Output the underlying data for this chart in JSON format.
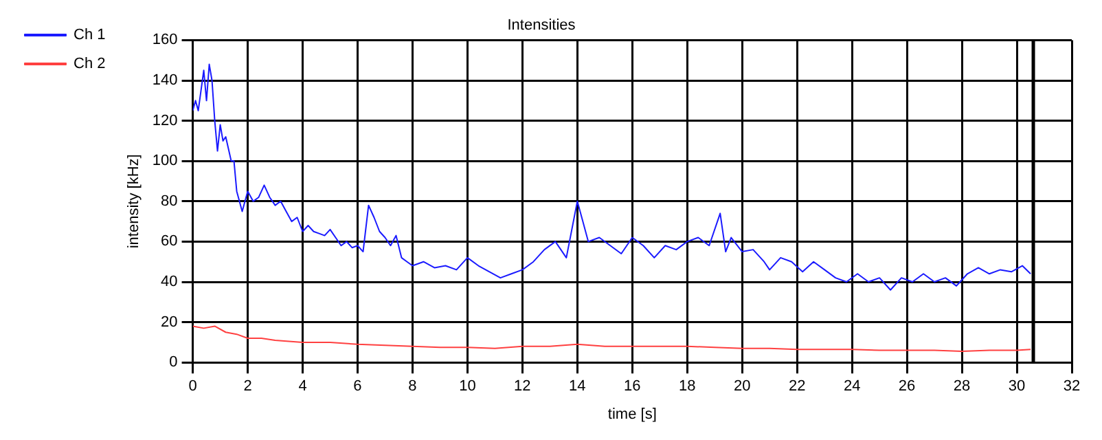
{
  "chart_data": {
    "type": "line",
    "title": "Intensities",
    "xlabel": "time [s]",
    "ylabel": "intensity [kHz]",
    "xlim": [
      0,
      32
    ],
    "xticks": [
      0,
      2,
      4,
      6,
      8,
      10,
      12,
      14,
      16,
      18,
      20,
      22,
      24,
      26,
      28,
      30,
      32
    ],
    "ylim": [
      0,
      160
    ],
    "yticks": [
      0,
      20,
      40,
      60,
      80,
      100,
      120,
      140,
      160
    ],
    "grid": true,
    "legend": "top left",
    "marker": "none",
    "line_style": "solid",
    "series": [
      {
        "name": "Ch 1",
        "color": "#1a1aff",
        "x": [
          0,
          0.1,
          0.2,
          0.3,
          0.4,
          0.5,
          0.6,
          0.7,
          0.8,
          0.9,
          1.0,
          1.1,
          1.2,
          1.4,
          1.5,
          1.6,
          1.8,
          2.0,
          2.2,
          2.4,
          2.6,
          2.8,
          3.0,
          3.2,
          3.4,
          3.6,
          3.8,
          4.0,
          4.2,
          4.4,
          4.6,
          4.8,
          5.0,
          5.2,
          5.4,
          5.6,
          5.8,
          6.0,
          6.2,
          6.4,
          6.6,
          6.8,
          7.0,
          7.2,
          7.4,
          7.6,
          7.8,
          8.0,
          8.4,
          8.8,
          9.2,
          9.6,
          10,
          10.4,
          10.8,
          11.2,
          11.6,
          12,
          12.4,
          12.8,
          13.2,
          13.6,
          14,
          14.2,
          14.4,
          14.8,
          15.2,
          15.6,
          16,
          16.4,
          16.8,
          17.2,
          17.6,
          18,
          18.4,
          18.8,
          19.2,
          19.4,
          19.6,
          20,
          20.4,
          20.8,
          21,
          21.4,
          21.8,
          22.2,
          22.6,
          23,
          23.4,
          23.8,
          24.2,
          24.6,
          25,
          25.4,
          25.8,
          26.2,
          26.6,
          27,
          27.4,
          27.8,
          28.2,
          28.6,
          29,
          29.4,
          29.8,
          30.2,
          30.5
        ],
        "values": [
          125,
          130,
          125,
          135,
          145,
          130,
          148,
          140,
          120,
          105,
          118,
          110,
          112,
          100,
          100,
          85,
          75,
          85,
          80,
          82,
          88,
          82,
          78,
          80,
          75,
          70,
          72,
          65,
          68,
          65,
          64,
          63,
          66,
          62,
          58,
          60,
          57,
          58,
          55,
          78,
          72,
          65,
          62,
          58,
          63,
          52,
          50,
          48,
          50,
          47,
          48,
          46,
          52,
          48,
          45,
          42,
          44,
          46,
          50,
          56,
          60,
          52,
          80,
          70,
          60,
          62,
          58,
          54,
          62,
          58,
          52,
          58,
          56,
          60,
          62,
          58,
          74,
          55,
          62,
          55,
          56,
          50,
          46,
          52,
          50,
          45,
          50,
          46,
          42,
          40,
          44,
          40,
          42,
          36,
          42,
          40,
          44,
          40,
          42,
          38,
          44,
          47,
          44,
          46,
          45,
          48,
          44
        ]
      },
      {
        "name": "Ch 2",
        "color": "#ff4040",
        "x": [
          0,
          0.4,
          0.8,
          1.2,
          1.6,
          2.0,
          2.5,
          3,
          4,
          5,
          6,
          7,
          8,
          9,
          10,
          11,
          12,
          12.4,
          13,
          14,
          15,
          16,
          17,
          18,
          19,
          20,
          21,
          22,
          23,
          24,
          25,
          26,
          27,
          28,
          29,
          30,
          30.5
        ],
        "values": [
          18,
          17,
          18,
          15,
          14,
          12,
          12,
          11,
          10,
          10,
          9,
          8.5,
          8,
          7.5,
          7.5,
          7,
          8,
          8,
          8,
          9,
          8,
          8,
          8,
          8,
          7.5,
          7,
          7,
          6.5,
          6.5,
          6.5,
          6,
          6,
          6,
          5.5,
          6,
          6,
          6.5
        ]
      }
    ],
    "ref_lines": [
      {
        "axis": "x",
        "value": 30.6,
        "color": "#000000"
      }
    ]
  }
}
